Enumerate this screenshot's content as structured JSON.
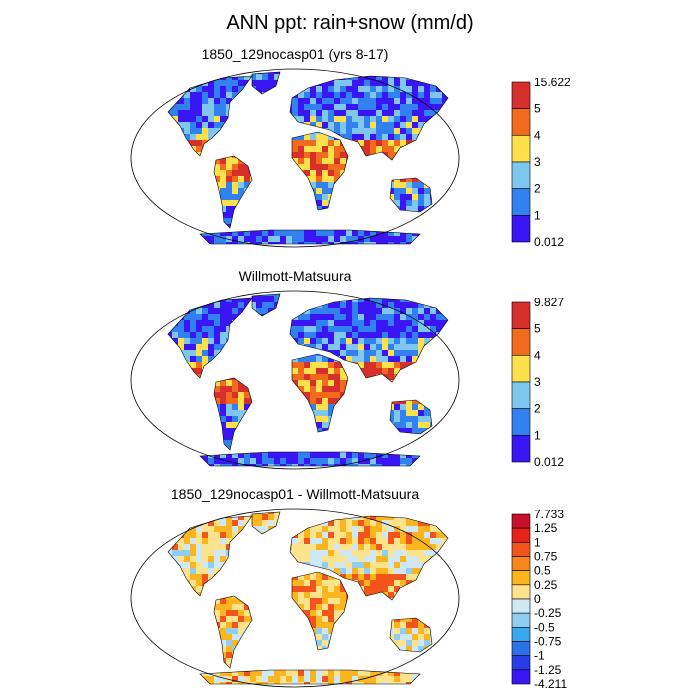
{
  "title": "ANN ppt: rain+snow (mm/d)",
  "panels": [
    {
      "title": "1850_129nocasp01 (yrs 8-17)",
      "colorbar": {
        "labels": [
          "15.622",
          "5",
          "4",
          "3",
          "2",
          "1",
          "0.012"
        ],
        "colors": [
          "#d7302c",
          "#f26b1d",
          "#fce14a",
          "#80c7ef",
          "#3182f0",
          "#3a16f5"
        ]
      },
      "palette": [
        "#3a16f5",
        "#3182f0",
        "#80c7ef",
        "#fce14a",
        "#f26b1d",
        "#d7302c"
      ]
    },
    {
      "title": "Willmott-Matsuura",
      "colorbar": {
        "labels": [
          "9.827",
          "5",
          "4",
          "3",
          "2",
          "1",
          "0.012"
        ],
        "colors": [
          "#d7302c",
          "#f26b1d",
          "#fce14a",
          "#80c7ef",
          "#3182f0",
          "#3a16f5"
        ]
      },
      "palette": [
        "#3a16f5",
        "#3182f0",
        "#80c7ef",
        "#fce14a",
        "#f26b1d",
        "#d7302c"
      ]
    },
    {
      "title": "1850_129nocasp01 - Willmott-Matsuura",
      "colorbar": {
        "labels": [
          "7.733",
          "1.25",
          "1",
          "0.75",
          "0.5",
          "0.25",
          "0",
          "-0.25",
          "-0.5",
          "-0.75",
          "-1",
          "-1.25",
          "-4.211"
        ],
        "colors": [
          "#c9102a",
          "#e62319",
          "#f2541c",
          "#f6861d",
          "#fbb51f",
          "#fde48c",
          "#cfe8f6",
          "#8fcdf3",
          "#39a9ef",
          "#2a72ea",
          "#2a3ce6",
          "#3a16f5"
        ]
      },
      "palette": [
        "#3a16f5",
        "#2a72ea",
        "#8fcdf3",
        "#cfe8f6",
        "#fde48c",
        "#fbb51f",
        "#f2541c",
        "#c9102a"
      ]
    }
  ]
}
